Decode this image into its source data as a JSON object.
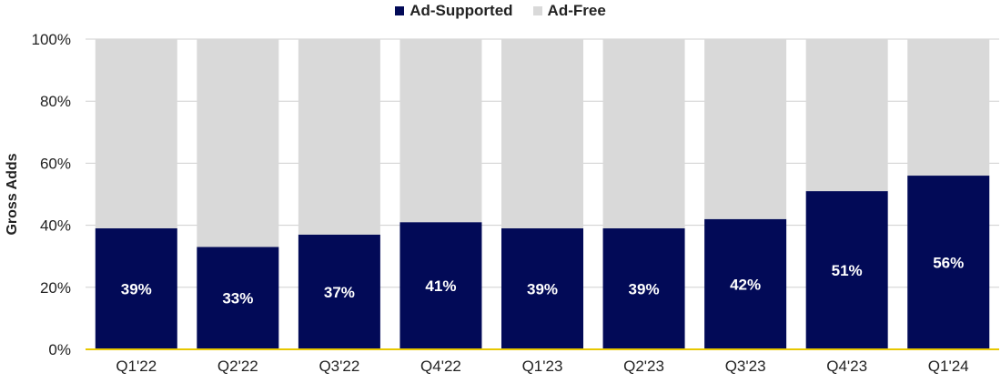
{
  "chart_data": {
    "type": "bar",
    "stacked": true,
    "categories": [
      "Q1'22",
      "Q2'22",
      "Q3'22",
      "Q4'22",
      "Q1'23",
      "Q2'23",
      "Q3'23",
      "Q4'23",
      "Q1'24"
    ],
    "series": [
      {
        "name": "Ad-Supported",
        "values": [
          39,
          33,
          37,
          41,
          39,
          39,
          42,
          51,
          56
        ],
        "labels": [
          "39%",
          "33%",
          "37%",
          "41%",
          "39%",
          "39%",
          "42%",
          "51%",
          "56%"
        ],
        "color": "#020a57"
      },
      {
        "name": "Ad-Free",
        "values": [
          61,
          67,
          63,
          59,
          61,
          61,
          58,
          49,
          44
        ],
        "color": "#d9d9d9"
      }
    ],
    "ylabel": "Gross Adds",
    "xlabel": "",
    "ylim": [
      0,
      100
    ],
    "yticks": [
      "0%",
      "20%",
      "40%",
      "60%",
      "80%",
      "100%"
    ],
    "legend_position": "top-center",
    "grid": true,
    "baseline_color": "#e8c800",
    "grid_color": "#cfcfcf"
  }
}
